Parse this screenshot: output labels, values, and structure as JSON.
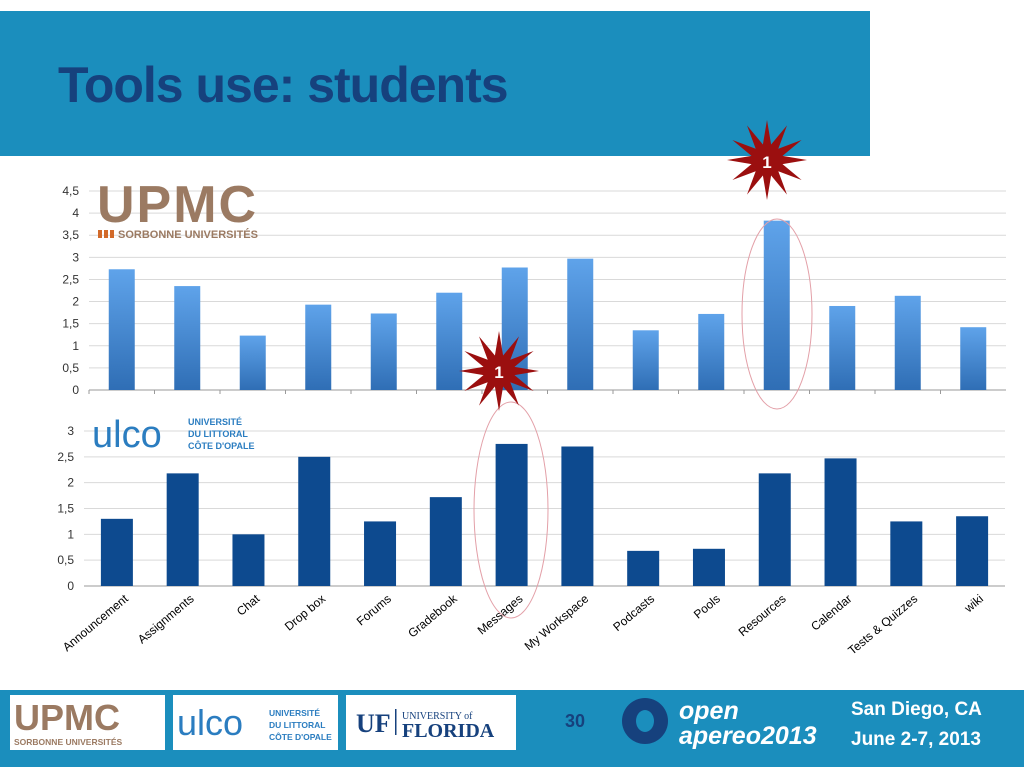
{
  "slide": {
    "title": "Tools use: students",
    "page_number": "30",
    "event_location": "San Diego, CA",
    "event_dates": "June 2-7, 2013",
    "conference_line1": "open",
    "conference_line2": "apereo2013"
  },
  "logos": {
    "upmc_name": "UPMC",
    "upmc_sub": "SORBONNE UNIVERSITÉS",
    "ulco_name": "ulco",
    "ulco_line1": "UNIVERSITÉ",
    "ulco_line2": "DU LITTORAL",
    "ulco_line3": "CÔTE D'OPALE",
    "uf_mark": "UF",
    "uf_line1": "UNIVERSITY of",
    "uf_line2": "FLORIDA"
  },
  "badges": {
    "top_label": "1",
    "middle_label": "1"
  },
  "colors": {
    "band": "#1b8ebd",
    "title": "#16417d",
    "bar_upmc": "#4a8fd6",
    "bar_ulco": "#0d4a8f",
    "star": "#9b0f0f",
    "upmc_brown": "#9b7a62"
  },
  "chart_data": [
    {
      "type": "bar",
      "name": "UPMC",
      "categories": [
        "Announcement",
        "Assignments",
        "Chat",
        "Drop box",
        "Forums",
        "Gradebook",
        "Messages",
        "My Workspace",
        "Podcasts",
        "Pools",
        "Resources",
        "Calendar",
        "Tests & Quizzes",
        "wiki"
      ],
      "values": [
        2.73,
        2.35,
        1.23,
        1.93,
        1.73,
        2.2,
        2.77,
        2.97,
        1.35,
        1.72,
        3.83,
        1.9,
        2.13,
        1.42
      ],
      "ylim": [
        0,
        4.5
      ],
      "yticks": [
        "0",
        "0,5",
        "1",
        "1,5",
        "2",
        "2,5",
        "3",
        "3,5",
        "4",
        "4,5"
      ],
      "grid": true,
      "highlight": "Resources"
    },
    {
      "type": "bar",
      "name": "ULCO",
      "categories": [
        "Announcement",
        "Assignments",
        "Chat",
        "Drop box",
        "Forums",
        "Gradebook",
        "Messages",
        "My Workspace",
        "Podcasts",
        "Pools",
        "Resources",
        "Calendar",
        "Tests & Quizzes",
        "wiki"
      ],
      "values": [
        1.3,
        2.18,
        1.0,
        2.5,
        1.25,
        1.72,
        2.75,
        2.7,
        0.68,
        0.72,
        2.18,
        2.47,
        1.25,
        1.35
      ],
      "ylim": [
        0,
        3
      ],
      "yticks": [
        "0",
        "0,5",
        "1",
        "1,5",
        "2",
        "2,5",
        "3"
      ],
      "grid": true,
      "highlight": "Messages"
    }
  ]
}
